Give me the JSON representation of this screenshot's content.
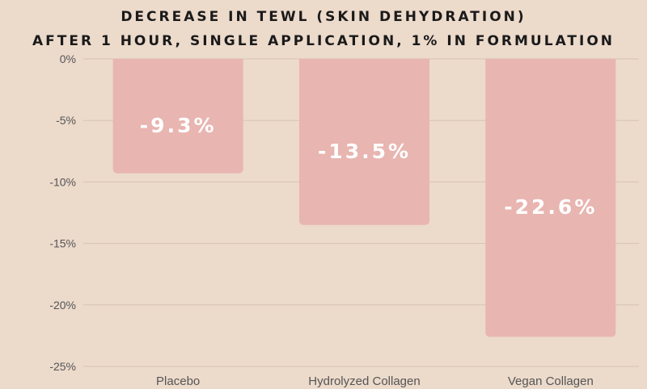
{
  "chart_data": {
    "type": "bar",
    "title": [
      "DECREASE IN TEWL (SKIN DEHYDRATION)",
      "AFTER 1 HOUR, SINGLE APPLICATION, 1% IN FORMULATION"
    ],
    "categories": [
      "Placebo",
      "Hydrolyzed Collagen",
      "Vegan Collagen"
    ],
    "values": [
      -9.3,
      -13.5,
      -22.6
    ],
    "data_labels": [
      "-9.3%",
      "-13.5%",
      "-22.6%"
    ],
    "ylim": [
      -25,
      0
    ],
    "yticks": [
      0,
      -5,
      -10,
      -15,
      -20,
      -25
    ],
    "ytick_labels": [
      "0%",
      "-5%",
      "-10%",
      "-15%",
      "-20%",
      "-25%"
    ],
    "grid": true,
    "legend": "none"
  },
  "colors": {
    "background": "#ecdacb",
    "bar": "#e8b5b1",
    "grid": "#d6c3b3",
    "title": "#1a1a1a",
    "axis_text": "#555555",
    "data_label": "#ffffff"
  }
}
